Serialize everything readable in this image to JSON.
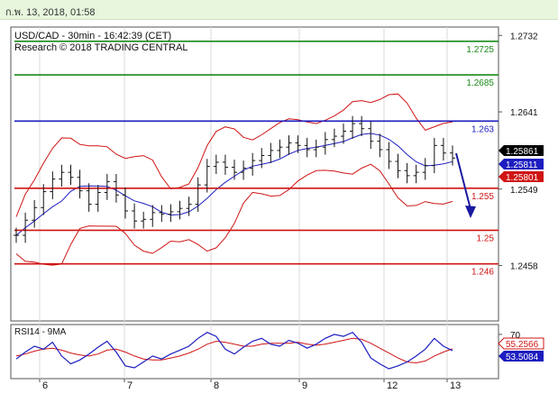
{
  "header": {
    "datetime": "ก.พ. 13, 2018, 01:58"
  },
  "chart_data": {
    "type": "line",
    "title": "USD/CAD - 30min - 16:42:39 (CET)",
    "subtitle": "Research © 2018 TRADING CENTRAL",
    "x_tick_labels": [
      "6",
      "7",
      "8",
      "9",
      "12",
      "13"
    ],
    "y_ticks": [
      "1.2732",
      "1.2641",
      "1.2549",
      "1.2458"
    ],
    "y_range": [
      1.2392,
      1.2742
    ],
    "levels": [
      {
        "label": "1.2725",
        "value": 1.2725,
        "color": "#1a8a1a"
      },
      {
        "label": "1.2685",
        "value": 1.2685,
        "color": "#1a8a1a"
      },
      {
        "label": "1.263",
        "value": 1.263,
        "color": "#1d1dc0"
      },
      {
        "label": "1.255",
        "value": 1.255,
        "color": "#d01414"
      },
      {
        "label": "1.25",
        "value": 1.25,
        "color": "#d01414"
      },
      {
        "label": "1.246",
        "value": 1.246,
        "color": "#d01414"
      }
    ],
    "price_tags": [
      {
        "label": "1.25861",
        "value": 1.25861,
        "bg": "#000000",
        "fg": "#ffffff"
      },
      {
        "label": "1.25811",
        "value": 1.25811,
        "bg": "#1d1dc0",
        "fg": "#ffffff"
      },
      {
        "label": "1.25801",
        "value": 1.25801,
        "bg": "#d01414",
        "fg": "#ffffff"
      }
    ],
    "price_series": [
      1.2494,
      1.2512,
      1.2527,
      1.2546,
      1.2561,
      1.2569,
      1.2563,
      1.2547,
      1.2531,
      1.2545,
      1.2558,
      1.2542,
      1.2523,
      1.2511,
      1.2513,
      1.2521,
      1.2519,
      1.2522,
      1.2526,
      1.2531,
      1.2554,
      1.2576,
      1.2581,
      1.2575,
      1.2569,
      1.2574,
      1.2583,
      1.2589,
      1.2595,
      1.2599,
      1.2604,
      1.2601,
      1.2596,
      1.2599,
      1.2608,
      1.2612,
      1.2618,
      1.2627,
      1.2621,
      1.2606,
      1.2596,
      1.2582,
      1.2571,
      1.2565,
      1.2569,
      1.2577,
      1.2601,
      1.2592,
      1.2586
    ],
    "indicator": {
      "label": "RSI14 - 9MA",
      "y_ticks": [
        "70"
      ],
      "tags": [
        {
          "label": "55.2566",
          "value": 55.2566,
          "bg": "#ffffff",
          "fg": "#d01414"
        },
        {
          "label": "53.5084",
          "value": 53.5084,
          "bg": "#1d1dc0",
          "fg": "#ffffff"
        }
      ],
      "rsi": [
        45,
        52,
        58,
        55,
        62,
        48,
        40,
        44,
        50,
        57,
        63,
        52,
        38,
        36,
        42,
        48,
        45,
        50,
        54,
        58,
        66,
        72,
        68,
        55,
        50,
        57,
        63,
        66,
        60,
        58,
        64,
        61,
        56,
        60,
        66,
        70,
        68,
        72,
        62,
        46,
        40,
        35,
        38,
        42,
        48,
        55,
        66,
        58,
        53.5
      ],
      "ma": [
        48,
        50,
        53,
        55,
        56,
        54,
        51,
        49,
        48,
        50,
        54,
        55,
        52,
        48,
        45,
        44,
        44,
        46,
        48,
        51,
        55,
        60,
        63,
        62,
        60,
        58,
        58,
        60,
        61,
        61,
        61,
        62,
        60,
        59,
        60,
        62,
        64,
        66,
        65,
        61,
        56,
        51,
        46,
        42,
        41,
        43,
        48,
        52,
        55.3
      ]
    }
  }
}
